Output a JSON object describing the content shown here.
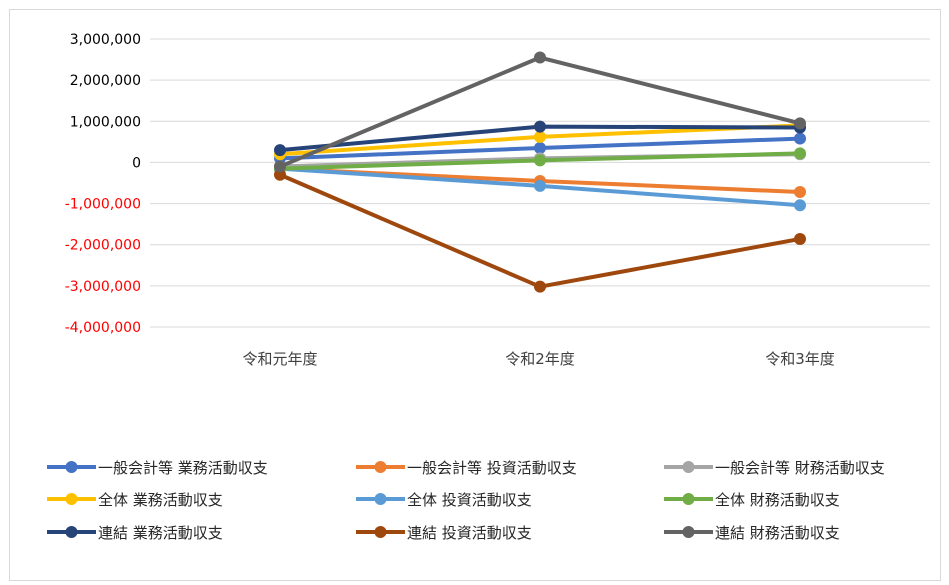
{
  "chart_data": {
    "type": "line",
    "categories": [
      "令和元年度",
      "令和2年度",
      "令和3年度"
    ],
    "ylim": [
      -4000000,
      3000000
    ],
    "y_ticks": [
      3000000,
      2000000,
      1000000,
      0,
      -1000000,
      -2000000,
      -3000000,
      -4000000
    ],
    "y_tick_labels": [
      "3,000,000",
      "2,000,000",
      "1,000,000",
      "0",
      "-1,000,000",
      "-2,000,000",
      "-3,000,000",
      "-4,000,000"
    ],
    "negative_tick_color": "#ff0000",
    "positive_tick_color": "#000000",
    "grid": true,
    "legend_position": "bottom",
    "series": [
      {
        "name": "一般会計等 業務活動収支",
        "color": "#4472c4",
        "values": [
          100000,
          350000,
          580000
        ]
      },
      {
        "name": "一般会計等 投資活動収支",
        "color": "#ed7d31",
        "values": [
          -150000,
          -450000,
          -720000
        ]
      },
      {
        "name": "一般会計等 財務活動収支",
        "color": "#a5a5a5",
        "values": [
          -100000,
          100000,
          200000
        ]
      },
      {
        "name": "全体 業務活動収支",
        "color": "#ffc000",
        "values": [
          200000,
          620000,
          900000
        ]
      },
      {
        "name": "全体 投資活動収支",
        "color": "#5b9bd5",
        "values": [
          -150000,
          -570000,
          -1040000
        ]
      },
      {
        "name": "全体 財務活動収支",
        "color": "#70ad47",
        "values": [
          -150000,
          50000,
          220000
        ]
      },
      {
        "name": "連結 業務活動収支",
        "color": "#264478",
        "values": [
          300000,
          870000,
          850000
        ]
      },
      {
        "name": "連結 投資活動収支",
        "color": "#9e480e",
        "values": [
          -300000,
          -3020000,
          -1860000
        ]
      },
      {
        "name": "連結 財務活動収支",
        "color": "#636363",
        "values": [
          -100000,
          2550000,
          950000
        ]
      }
    ]
  }
}
